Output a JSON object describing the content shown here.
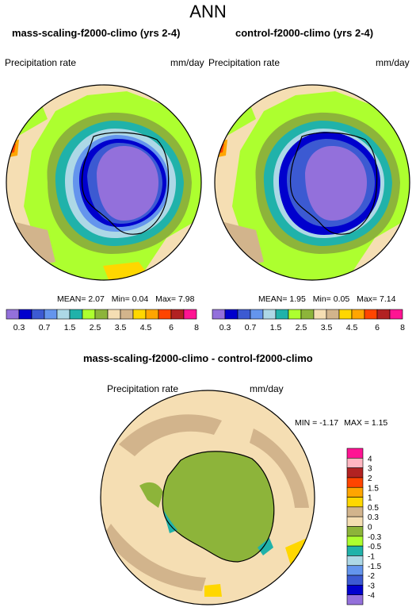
{
  "figure_title": "ANN",
  "panels": [
    {
      "title": "mass-scaling-f2000-climo (yrs 2-4)",
      "variable": "Precipitation rate",
      "units": "mm/day",
      "stats": {
        "mean_label": "MEAN=",
        "mean": "2.07",
        "min_label": "Min=",
        "min": "0.04",
        "max_label": "Max=",
        "max": "7.98"
      }
    },
    {
      "title": "control-f2000-climo (yrs 2-4)",
      "variable": "Precipitation rate",
      "units": "mm/day",
      "stats": {
        "mean_label": "MEAN=",
        "mean": "1.95",
        "min_label": "Min=",
        "min": "0.05",
        "max_label": "Max=",
        "max": "7.14"
      }
    },
    {
      "title": "mass-scaling-f2000-climo - control-f2000-climo",
      "variable": "Precipitation rate",
      "units": "mm/day",
      "stats": {
        "min_label": "MIN =",
        "min": "-1.17",
        "max_label": "MAX =",
        "max": "1.15"
      }
    }
  ],
  "colorbar_abs": {
    "colors": [
      "#9370db",
      "#0000cd",
      "#3c5ad2",
      "#6495ed",
      "#add8e6",
      "#20b2aa",
      "#adff2f",
      "#8db43a",
      "#f5deb3",
      "#d2b48c",
      "#ffd700",
      "#ffa500",
      "#ff4500",
      "#b22222",
      "#ff1493"
    ],
    "labels": [
      "0.3",
      "0.7",
      "1.5",
      "2.5",
      "3.5",
      "4.5",
      "6",
      "8"
    ]
  },
  "colorbar_diff": {
    "colors": [
      "#ff1493",
      "#ffb6c1",
      "#b22222",
      "#ff4500",
      "#ffa500",
      "#ffd700",
      "#d2b48c",
      "#f5deb3",
      "#8db43a",
      "#adff2f",
      "#20b2aa",
      "#add8e6",
      "#6495ed",
      "#3c5ad2",
      "#0000cd",
      "#9370db"
    ],
    "labels": [
      "4",
      "3",
      "2",
      "1.5",
      "1",
      "0.5",
      "0.3",
      "0",
      "-0.3",
      "-0.5",
      "-1",
      "-1.5",
      "-2",
      "-3",
      "-4"
    ]
  }
}
